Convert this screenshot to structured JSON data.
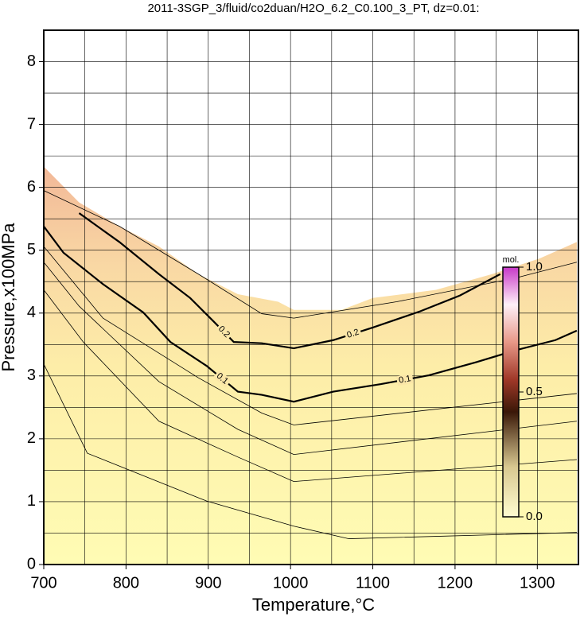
{
  "chart_data": {
    "type": "contour",
    "title": "2011-3SGP_3/fluid/co2duan/H2O_6.2_C0.100_3_PT, dz=0.01:",
    "x_label": "Temperature,°C",
    "y_label": "Pressure,x100MPa",
    "xlim": [
      700,
      1350
    ],
    "ylim": [
      0,
      8.5
    ],
    "xticks": [
      700,
      800,
      900,
      1000,
      1100,
      1200,
      1300
    ],
    "yticks": [
      0,
      1,
      2,
      3,
      4,
      5,
      6,
      7,
      8
    ],
    "xgrid": [
      700,
      750,
      800,
      850,
      900,
      950,
      1000,
      1050,
      1100,
      1150,
      1200,
      1250,
      1300,
      1350
    ],
    "ygrid": [
      0,
      0.5,
      1,
      1.5,
      2,
      2.5,
      3,
      3.5,
      4,
      4.5,
      5,
      5.5,
      6,
      6.5,
      7,
      7.5,
      8,
      8.5
    ],
    "grid": true,
    "boundary": {
      "x": [
        700,
        743,
        792,
        840,
        888,
        936,
        985,
        1004,
        1062,
        1100,
        1177,
        1245,
        1303,
        1348
      ],
      "y": [
        6.33,
        5.76,
        5.38,
        5.06,
        4.62,
        4.3,
        4.18,
        4.05,
        4.05,
        4.24,
        4.37,
        4.62,
        4.87,
        5.13
      ]
    },
    "contours": [
      {
        "x": [
          700,
          753,
          898,
          1004,
          1071,
          1348
        ],
        "y": [
          3.19,
          1.77,
          1.01,
          0.61,
          0.41,
          0.51
        ]
      },
      {
        "x": [
          700,
          748,
          840,
          936,
          1004,
          1348
        ],
        "y": [
          4.37,
          3.54,
          2.28,
          1.71,
          1.32,
          1.67
        ]
      },
      {
        "x": [
          700,
          743,
          840,
          936,
          1004,
          1348
        ],
        "y": [
          4.81,
          4.11,
          2.91,
          2.15,
          1.75,
          2.28
        ]
      },
      {
        "x": [
          700,
          772,
          888,
          965,
          1004,
          1348
        ],
        "y": [
          5.06,
          3.92,
          2.97,
          2.41,
          2.22,
          2.72
        ]
      },
      {
        "level": 0.1,
        "bold": true,
        "x": [
          700,
          724,
          772,
          821,
          854,
          898,
          936,
          965,
          1004,
          1052,
          1110,
          1168,
          1226,
          1274,
          1322,
          1348
        ],
        "y": [
          5.38,
          4.96,
          4.46,
          4.01,
          3.54,
          3.16,
          2.75,
          2.7,
          2.59,
          2.75,
          2.87,
          3.01,
          3.22,
          3.41,
          3.57,
          3.72
        ]
      },
      {
        "level": 0.2,
        "bold": true,
        "x": [
          743,
          792,
          840,
          878,
          907,
          931,
          965,
          1004,
          1052,
          1100,
          1158,
          1206,
          1255
        ],
        "y": [
          5.59,
          5.13,
          4.62,
          4.24,
          3.86,
          3.54,
          3.52,
          3.44,
          3.57,
          3.77,
          4.03,
          4.28,
          4.62
        ]
      },
      {
        "x": [
          700,
          792,
          888,
          965,
          1004,
          1129,
          1274,
          1348
        ],
        "y": [
          5.95,
          5.38,
          4.62,
          3.99,
          3.92,
          4.18,
          4.56,
          4.81
        ]
      }
    ],
    "colorbar": {
      "label": "mol.",
      "lim": [
        0,
        1
      ],
      "ticks": [
        {
          "value": 0,
          "label": "0.0"
        },
        {
          "value": 0.5,
          "label": "0.5"
        },
        {
          "value": 1,
          "label": "1.0"
        }
      ]
    }
  }
}
